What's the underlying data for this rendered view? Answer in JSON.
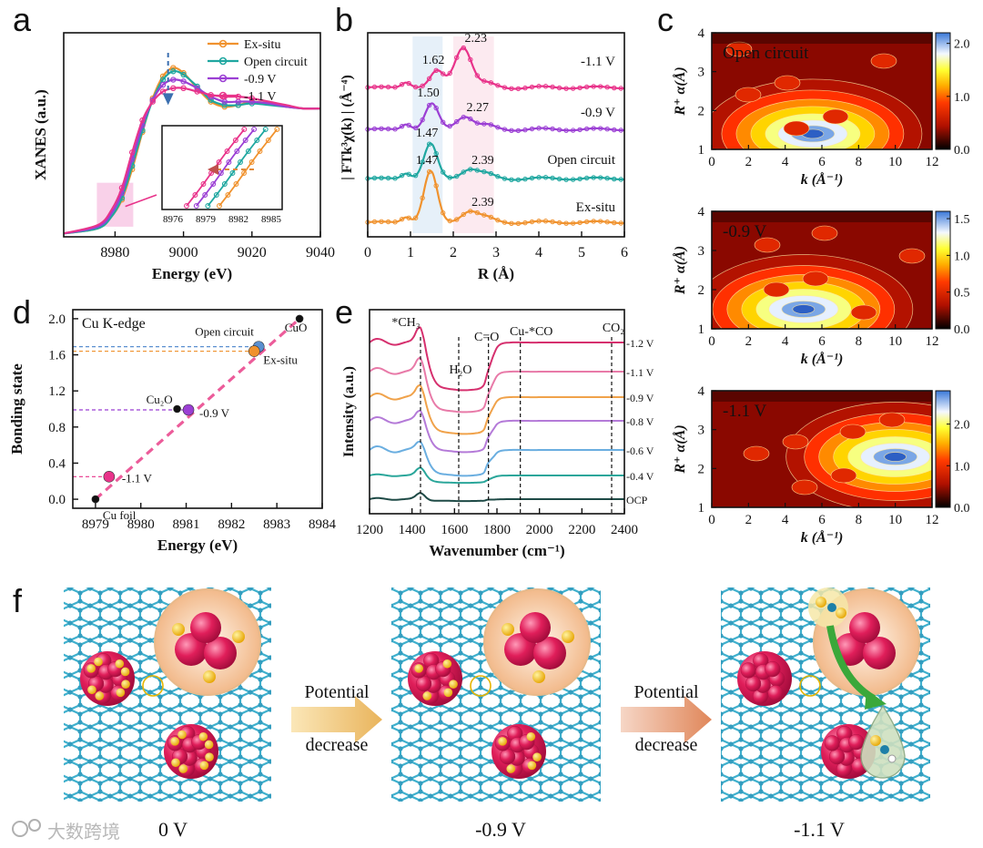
{
  "panel_labels": {
    "a": "a",
    "b": "b",
    "c": "c",
    "d": "d",
    "e": "e",
    "f": "f"
  },
  "watermark": "大数跨境",
  "chart_data": [
    {
      "id": "a",
      "type": "line",
      "xlabel": "Energy (eV)",
      "ylabel": "XANES (a.u.)",
      "xlim": [
        8965,
        9040
      ],
      "xticks": [
        8980,
        9000,
        9020,
        9040
      ],
      "legend_position": "top-right",
      "series": [
        {
          "name": "Ex-situ",
          "color": "#f0922e",
          "x": [
            8965,
            8975,
            8979,
            8982,
            8985,
            8988,
            8991,
            8994,
            8997,
            9000,
            9004,
            9008,
            9012,
            9016,
            9020,
            9025,
            9030,
            9035,
            9040
          ],
          "y": [
            0.02,
            0.05,
            0.12,
            0.22,
            0.4,
            0.62,
            0.82,
            0.95,
            1.0,
            0.97,
            0.88,
            0.8,
            0.77,
            0.78,
            0.8,
            0.79,
            0.77,
            0.76,
            0.76
          ]
        },
        {
          "name": "Open circuit",
          "color": "#1fa7a0",
          "x": [
            8965,
            8975,
            8979,
            8982,
            8985,
            8988,
            8991,
            8994,
            8997,
            9000,
            9004,
            9008,
            9012,
            9016,
            9020,
            9025,
            9030,
            9035,
            9040
          ],
          "y": [
            0.02,
            0.05,
            0.12,
            0.23,
            0.42,
            0.63,
            0.81,
            0.93,
            0.98,
            0.96,
            0.89,
            0.81,
            0.78,
            0.78,
            0.79,
            0.78,
            0.77,
            0.76,
            0.76
          ]
        },
        {
          "name": "-0.9 V",
          "color": "#9b3fd4",
          "x": [
            8965,
            8975,
            8979,
            8982,
            8985,
            8988,
            8991,
            8994,
            8997,
            9000,
            9004,
            9008,
            9012,
            9016,
            9020,
            9025,
            9030,
            9035,
            9040
          ],
          "y": [
            0.02,
            0.06,
            0.14,
            0.26,
            0.46,
            0.66,
            0.81,
            0.9,
            0.93,
            0.92,
            0.88,
            0.83,
            0.8,
            0.8,
            0.8,
            0.79,
            0.77,
            0.76,
            0.76
          ]
        },
        {
          "name": "-1.1 V",
          "color": "#e8338a",
          "x": [
            8965,
            8975,
            8979,
            8982,
            8985,
            8988,
            8991,
            8994,
            8997,
            9000,
            9004,
            9008,
            9012,
            9016,
            9020,
            9025,
            9030,
            9035,
            9040
          ],
          "y": [
            0.02,
            0.07,
            0.16,
            0.29,
            0.5,
            0.69,
            0.8,
            0.86,
            0.88,
            0.88,
            0.86,
            0.84,
            0.83,
            0.83,
            0.82,
            0.8,
            0.78,
            0.76,
            0.76
          ]
        }
      ],
      "inset": {
        "xticks": [
          8976,
          8979,
          8982,
          8985
        ],
        "xlim": [
          8975,
          8986
        ]
      }
    },
    {
      "id": "b",
      "type": "line",
      "xlabel": "R (Å)",
      "ylabel": "| FTk³χ(k) | (Å⁻⁴)",
      "xlim": [
        0,
        6
      ],
      "xticks": [
        0,
        1,
        2,
        3,
        4,
        5,
        6
      ],
      "series": [
        {
          "name": "-1.1 V",
          "color": "#e8338a",
          "offset": 3,
          "peaks": [
            {
              "r": 1.62,
              "label": "1.62"
            },
            {
              "r": 2.23,
              "label": "2.23"
            }
          ]
        },
        {
          "name": "-0.9 V",
          "color": "#9b3fd4",
          "offset": 2,
          "peaks": [
            {
              "r": 1.5,
              "label": "1.50"
            },
            {
              "r": 2.27,
              "label": "2.27"
            }
          ]
        },
        {
          "name": "Open circuit",
          "color": "#1fa7a0",
          "offset": 1,
          "peaks": [
            {
              "r": 1.47,
              "label": "1.47"
            },
            {
              "r": 2.39,
              "label": "2.39"
            }
          ]
        },
        {
          "name": "Ex-situ",
          "color": "#f0922e",
          "offset": 0,
          "peaks": [
            {
              "r": 1.47,
              "label": "1.47"
            },
            {
              "r": 2.39,
              "label": "2.39"
            }
          ]
        }
      ]
    },
    {
      "id": "c",
      "type": "heatmap",
      "xlabel": "k (Å⁻¹)",
      "ylabel": "R⁺ α(Å)",
      "xlim": [
        0,
        12
      ],
      "ylim": [
        1,
        4
      ],
      "xticks": [
        0,
        2,
        4,
        6,
        8,
        10,
        12
      ],
      "yticks": [
        1,
        2,
        3,
        4
      ],
      "maps": [
        {
          "title": "Open circuit",
          "colorbar_ticks": [
            "2.0",
            "1.0",
            "0.0"
          ],
          "max": 2.2,
          "center_k": 5.5,
          "center_r": 1.4
        },
        {
          "title": "-0.9 V",
          "colorbar_ticks": [
            "1.5",
            "1.0",
            "0.5",
            "0.0"
          ],
          "max": 1.6,
          "center_k": 5.0,
          "center_r": 1.5
        },
        {
          "title": "-1.1 V",
          "colorbar_ticks": [
            "2.0",
            "1.0",
            "0.0"
          ],
          "max": 2.8,
          "center_k": 10.0,
          "center_r": 2.3
        }
      ]
    },
    {
      "id": "d",
      "type": "scatter",
      "title": "Cu K-edge",
      "xlabel": "Energy (eV)",
      "ylabel": "Bonding state",
      "xlim": [
        8978.5,
        8984
      ],
      "ylim": [
        -0.1,
        2.1
      ],
      "xticks": [
        8979,
        8980,
        8981,
        8982,
        8983,
        8984
      ],
      "yticks": [
        "0.0",
        "0.4",
        "0.8",
        "1.2",
        "1.6",
        "2.0"
      ],
      "points": [
        {
          "label": "Cu foil",
          "x": 8979.0,
          "y": 0.0,
          "color": "#111111",
          "kind": "reference"
        },
        {
          "label": "Cu₂O",
          "x": 8980.8,
          "y": 1.0,
          "color": "#111111",
          "kind": "reference"
        },
        {
          "label": "CuO",
          "x": 8983.5,
          "y": 2.0,
          "color": "#111111",
          "kind": "reference"
        },
        {
          "label": "-1.1 V",
          "x": 8979.3,
          "y": 0.25,
          "color": "#e8338a",
          "kind": "sample"
        },
        {
          "label": "-0.9 V",
          "x": 8981.05,
          "y": 0.99,
          "color": "#9b3fd4",
          "kind": "sample"
        },
        {
          "label": "Open circuit",
          "x": 8982.6,
          "y": 1.69,
          "color": "#5a8fd0",
          "kind": "sample"
        },
        {
          "label": "Ex-situ",
          "x": 8982.5,
          "y": 1.64,
          "color": "#f0922e",
          "kind": "sample"
        }
      ],
      "fit": {
        "x": [
          8979.0,
          8983.5
        ],
        "y": [
          0.0,
          2.0
        ]
      }
    },
    {
      "id": "e",
      "type": "line",
      "xlabel": "Wavenumber (cm⁻¹)",
      "ylabel": "Intensity (a.u.)",
      "xlim": [
        1200,
        2400
      ],
      "xticks": [
        1200,
        1400,
        1600,
        1800,
        2000,
        2200,
        2400
      ],
      "annotations": [
        {
          "label": "*CH₃",
          "x": 1440
        },
        {
          "label": "H₂O",
          "x": 1620
        },
        {
          "label": "C=O",
          "x": 1760
        },
        {
          "label": "Cu-*CO",
          "x": 1910
        },
        {
          "label": "CO₂",
          "x": 2340
        }
      ],
      "series": [
        {
          "name": "-1.2 V",
          "color": "#d6306e"
        },
        {
          "name": "-1.1 V",
          "color": "#e87aa8"
        },
        {
          "name": "-0.9 V",
          "color": "#f0a24a"
        },
        {
          "name": "-0.8 V",
          "color": "#b47ad8"
        },
        {
          "name": "-0.6 V",
          "color": "#6aaee0"
        },
        {
          "name": "-0.4 V",
          "color": "#2aa69a"
        },
        {
          "name": "OCP",
          "color": "#1e4a46"
        }
      ]
    }
  ],
  "schematic": {
    "arrow_labels": [
      {
        "line1": "Potential",
        "line2": "decrease"
      },
      {
        "line1": "Potential",
        "line2": "decrease"
      }
    ],
    "stage_labels": [
      "0 V",
      "-0.9 V",
      "-1.1 V"
    ]
  }
}
